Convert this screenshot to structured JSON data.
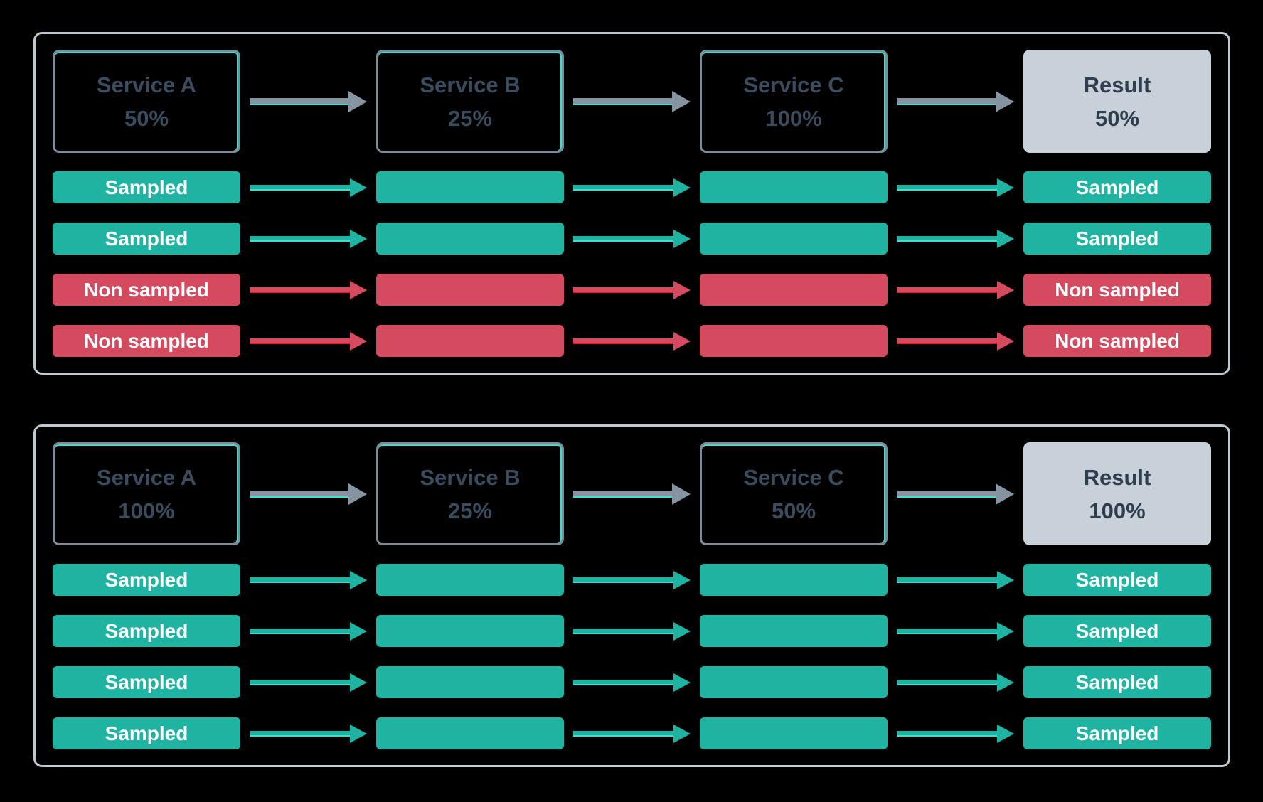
{
  "colors": {
    "background": "#000000",
    "panel_border": "#bec9d2",
    "service_box_border": "#7e8c9a",
    "service_box_text": "#3b4c5e",
    "accent_cyan": "#3adfd2",
    "sampled_fill": "#1fb3a2",
    "sampled_accent": "#17e2cf",
    "non_sampled_fill": "#d44a5f",
    "non_sampled_accent": "#f0142d",
    "result_fill": "#c8d1d9",
    "result_text": "#2f3e4f",
    "arrow_gray": "#8694a2",
    "bar_text": "#ffffff"
  },
  "panels": [
    {
      "services": [
        {
          "label": "Service A",
          "rate": "50%"
        },
        {
          "label": "Service B",
          "rate": "25%"
        },
        {
          "label": "Service C",
          "rate": "100%"
        },
        {
          "label": "Result",
          "rate": "50%"
        }
      ],
      "rows": [
        {
          "status": "sampled",
          "label": "Sampled"
        },
        {
          "status": "sampled",
          "label": "Sampled"
        },
        {
          "status": "non-sampled",
          "label": "Non sampled"
        },
        {
          "status": "non-sampled",
          "label": "Non sampled"
        }
      ]
    },
    {
      "services": [
        {
          "label": "Service A",
          "rate": "100%"
        },
        {
          "label": "Service B",
          "rate": "25%"
        },
        {
          "label": "Service C",
          "rate": "50%"
        },
        {
          "label": "Result",
          "rate": "100%"
        }
      ],
      "rows": [
        {
          "status": "sampled",
          "label": "Sampled"
        },
        {
          "status": "sampled",
          "label": "Sampled"
        },
        {
          "status": "sampled",
          "label": "Sampled"
        },
        {
          "status": "sampled",
          "label": "Sampled"
        }
      ]
    }
  ]
}
